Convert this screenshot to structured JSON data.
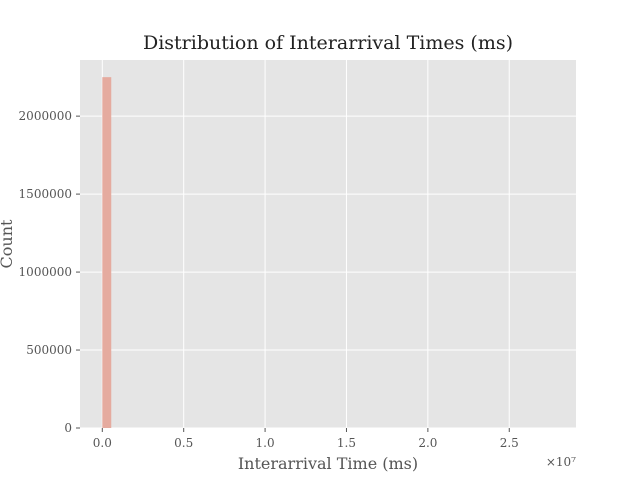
{
  "chart_data": {
    "type": "bar",
    "title": "Distribution of Interarrival Times (ms)",
    "xlabel": "Interarrival Time (ms)",
    "ylabel": "Count",
    "x_offset_label": "×10⁷",
    "x_ticks": [
      0.0,
      0.5,
      1.0,
      1.5,
      2.0,
      2.5
    ],
    "x_tick_labels": [
      "0.0",
      "0.5",
      "1.0",
      "1.5",
      "2.0",
      "2.5"
    ],
    "y_ticks": [
      0,
      500000,
      1000000,
      1500000,
      2000000
    ],
    "y_tick_labels": [
      "0",
      "500000",
      "1000000",
      "1500000",
      "2000000"
    ],
    "xlim": [
      -0.137,
      2.91
    ],
    "ylim": [
      0,
      2360000
    ],
    "bins": [
      {
        "x0": 0.0,
        "x1": 0.055,
        "value": 2250000
      },
      {
        "x0": 0.055,
        "x1": 2.8,
        "value": 0
      }
    ],
    "grid": true,
    "colors": {
      "bar": "#E5AB9F",
      "background": "#E5E5E5",
      "grid": "#FFFFFF"
    }
  }
}
